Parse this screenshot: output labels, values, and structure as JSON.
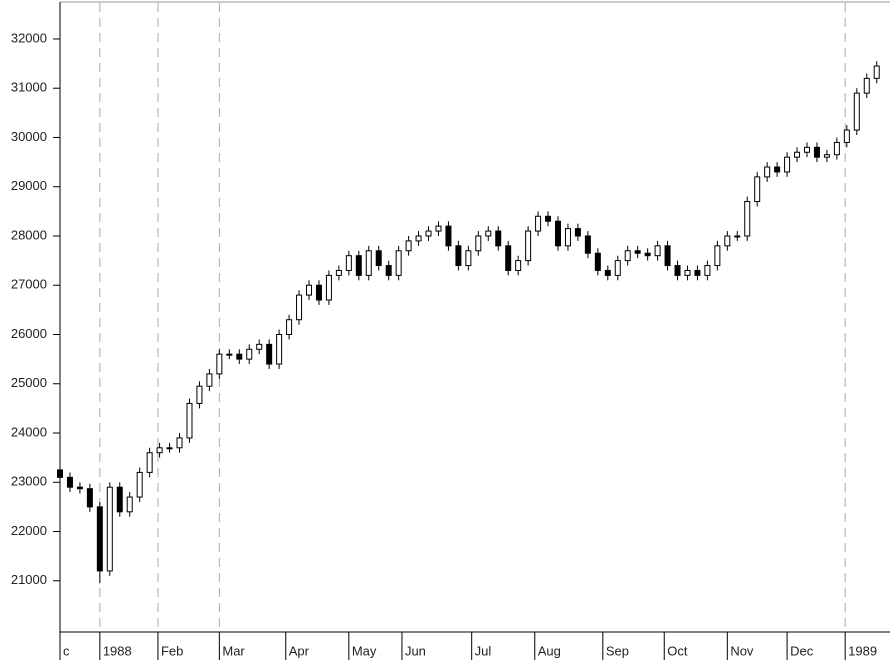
{
  "chart_data": {
    "type": "candlestick",
    "x": [
      0,
      3,
      6,
      9,
      12,
      15,
      18,
      21,
      24,
      27,
      30,
      33,
      36,
      39,
      42,
      45,
      48,
      51,
      54,
      57,
      60,
      63,
      66,
      69,
      72,
      75,
      78,
      81,
      84,
      87,
      90,
      93,
      96,
      99,
      102,
      105,
      108,
      111,
      114,
      117,
      120,
      123,
      126,
      129,
      132,
      135,
      138,
      141,
      144,
      147,
      150,
      153,
      156,
      159,
      162,
      165,
      168,
      171,
      174,
      177,
      180,
      183,
      186,
      189,
      192,
      195,
      198,
      201,
      204,
      207,
      210,
      213,
      216,
      219,
      222,
      225,
      228,
      231,
      234,
      237,
      240,
      243,
      246
    ],
    "open": [
      23250,
      23100,
      22900,
      22870,
      22500,
      21200,
      22900,
      22400,
      22700,
      23200,
      23600,
      23700,
      23700,
      23900,
      24600,
      24950,
      25200,
      25600,
      25600,
      25500,
      25700,
      25800,
      25400,
      26000,
      26300,
      26800,
      27000,
      26700,
      27200,
      27300,
      27600,
      27200,
      27700,
      27400,
      27200,
      27700,
      27900,
      28000,
      28100,
      28200,
      27800,
      27400,
      27700,
      28000,
      28100,
      27800,
      27300,
      27500,
      28100,
      28400,
      28300,
      27800,
      28150,
      28000,
      27650,
      27300,
      27200,
      27500,
      27700,
      27650,
      27600,
      27800,
      27400,
      27200,
      27300,
      27200,
      27400,
      27800,
      28000,
      28000,
      28700,
      29200,
      29400,
      29300,
      29600,
      29700,
      29800,
      29600,
      29650,
      29900,
      30150,
      30900,
      31200
    ],
    "high": [
      23350,
      23200,
      23000,
      22970,
      22600,
      23000,
      23000,
      22800,
      23300,
      23700,
      23800,
      23800,
      24000,
      24700,
      25050,
      25300,
      25700,
      25700,
      25700,
      25800,
      25900,
      25900,
      26100,
      26400,
      26900,
      27100,
      27100,
      27300,
      27400,
      27700,
      27700,
      27800,
      27800,
      27500,
      27800,
      28000,
      28100,
      28200,
      28300,
      28300,
      27900,
      27800,
      28100,
      28200,
      28200,
      27900,
      27600,
      28200,
      28500,
      28500,
      28400,
      28250,
      28250,
      28100,
      27750,
      27400,
      27600,
      27800,
      27800,
      27750,
      27900,
      27900,
      27500,
      27400,
      27400,
      27500,
      27900,
      28100,
      28100,
      28800,
      29300,
      29500,
      29500,
      29700,
      29800,
      29900,
      29900,
      29750,
      30000,
      30250,
      31000,
      31300,
      31550
    ],
    "low": [
      23000,
      22800,
      22770,
      22400,
      20950,
      21100,
      22300,
      22300,
      22600,
      23100,
      23500,
      23600,
      23600,
      23800,
      24500,
      24850,
      25100,
      25500,
      25400,
      25400,
      25600,
      25300,
      25300,
      25900,
      26200,
      26700,
      26600,
      26600,
      27100,
      27200,
      27100,
      27100,
      27300,
      27100,
      27100,
      27600,
      27800,
      27900,
      28000,
      27700,
      27300,
      27300,
      27600,
      27900,
      27700,
      27200,
      27200,
      27400,
      28000,
      28200,
      27700,
      27700,
      27900,
      27550,
      27200,
      27100,
      27100,
      27400,
      27550,
      27500,
      27500,
      27300,
      27100,
      27100,
      27100,
      27100,
      27300,
      27700,
      27900,
      27900,
      28600,
      29100,
      29200,
      29200,
      29500,
      29600,
      29500,
      29500,
      29550,
      29800,
      30050,
      30800,
      31100
    ],
    "close": [
      23100,
      22900,
      22870,
      22500,
      21200,
      22900,
      22400,
      22700,
      23200,
      23600,
      23700,
      23700,
      23900,
      24600,
      24950,
      25200,
      25600,
      25600,
      25500,
      25700,
      25800,
      25400,
      26000,
      26300,
      26800,
      27000,
      26700,
      27200,
      27300,
      27600,
      27200,
      27700,
      27400,
      27200,
      27700,
      27900,
      28000,
      28100,
      28200,
      27800,
      27400,
      27700,
      28000,
      28100,
      27800,
      27300,
      27500,
      28100,
      28400,
      28300,
      27800,
      28150,
      28000,
      27650,
      27300,
      27200,
      27500,
      27700,
      27650,
      27600,
      27800,
      27400,
      27200,
      27300,
      27200,
      27400,
      27800,
      28000,
      28000,
      28700,
      29200,
      29400,
      29300,
      29600,
      29700,
      29800,
      29600,
      29650,
      29900,
      30150,
      30900,
      31200,
      31450
    ],
    "up_color": "#ffffff",
    "down_color": "#000000",
    "line_color": "#000000",
    "xlim": [
      0,
      250
    ],
    "ylim": [
      19960,
      32730
    ],
    "yticks": [
      21000,
      22000,
      23000,
      24000,
      25000,
      26000,
      27000,
      28000,
      29000,
      30000,
      31000,
      32000
    ],
    "xticks": [
      {
        "value": 0,
        "label": "c"
      },
      {
        "value": 12,
        "label": "1988",
        "dashed": true
      },
      {
        "value": 29.5,
        "label": "Feb",
        "dashed": true
      },
      {
        "value": 48,
        "label": "Mar",
        "dashed": true
      },
      {
        "value": 68,
        "label": "Apr"
      },
      {
        "value": 87,
        "label": "May"
      },
      {
        "value": 103,
        "label": "Jun"
      },
      {
        "value": 124,
        "label": "Jul"
      },
      {
        "value": 143,
        "label": "Aug"
      },
      {
        "value": 163.5,
        "label": "Sep"
      },
      {
        "value": 182,
        "label": "Oct"
      },
      {
        "value": 201,
        "label": "Nov"
      },
      {
        "value": 219,
        "label": "Dec"
      },
      {
        "value": 236.5,
        "label": "1989",
        "dashed": true
      }
    ]
  }
}
